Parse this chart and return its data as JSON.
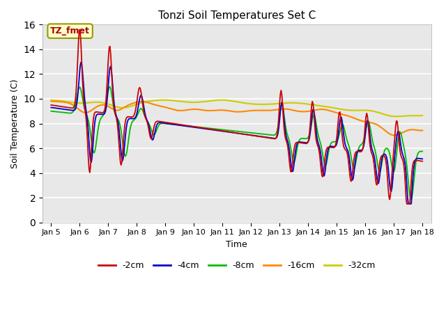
{
  "title": "Tonzi Soil Temperatures Set C",
  "xlabel": "Time",
  "ylabel": "Soil Temperature (C)",
  "annotation": "TZ_fmet",
  "ylim": [
    0,
    16
  ],
  "yticks": [
    0,
    2,
    4,
    6,
    8,
    10,
    12,
    14,
    16
  ],
  "fig_bg_color": "#ffffff",
  "plot_bg_color": "#e8e8e8",
  "grid_color": "#ffffff",
  "colors": {
    "-2cm": "#cc0000",
    "-4cm": "#0000cc",
    "-8cm": "#00bb00",
    "-16cm": "#ff8800",
    "-32cm": "#cccc00"
  },
  "legend_labels": [
    "-2cm",
    "-4cm",
    "-8cm",
    "-16cm",
    "-32cm"
  ],
  "x_tick_labels": [
    "Jan 5",
    "Jan 6",
    "Jan 7",
    "Jan 8",
    "Jan 9",
    "Jan 10",
    "Jan 11",
    "Jan 12",
    "Jan 13",
    "Jan 14",
    "Jan 15",
    "Jan 16",
    "Jan 17",
    "Jan 18"
  ],
  "n_points": 500
}
